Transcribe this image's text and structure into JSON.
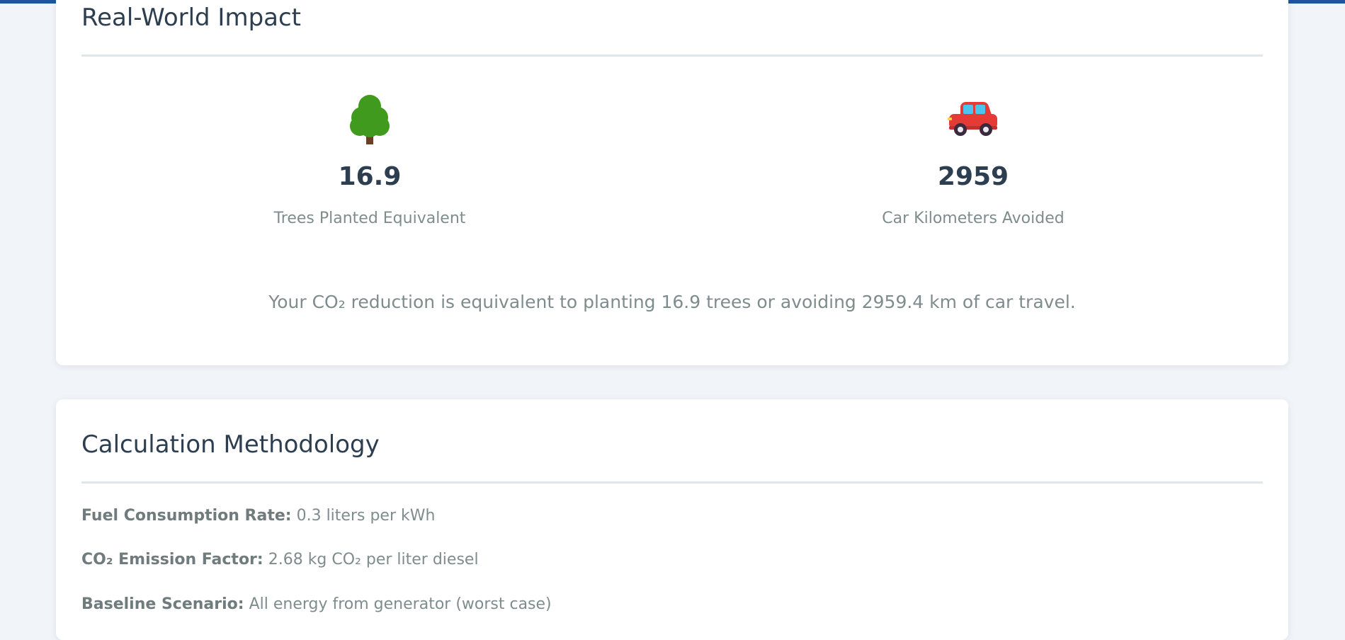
{
  "colors": {
    "accent_bar": "#1f55a0",
    "heading": "#2c3e50",
    "muted_text": "#7f8c8d",
    "background": "#f1f4f8",
    "tree_green": "#3f9a1d",
    "car_red": "#e63a36",
    "car_window": "#4cc4ee"
  },
  "impact": {
    "title": "Real-World Impact",
    "stats": [
      {
        "icon": "tree-icon",
        "value": "16.9",
        "label": "Trees Planted Equivalent"
      },
      {
        "icon": "car-icon",
        "value": "2959",
        "label": "Car Kilometers Avoided"
      }
    ],
    "summary": "Your CO₂ reduction is equivalent to planting 16.9 trees or avoiding 2959.4 km of car travel."
  },
  "methodology": {
    "title": "Calculation Methodology",
    "items": [
      {
        "label": "Fuel Consumption Rate:",
        "value": "0.3 liters per kWh"
      },
      {
        "label": "CO₂ Emission Factor:",
        "value": "2.68 kg CO₂ per liter diesel"
      },
      {
        "label": "Baseline Scenario:",
        "value": "All energy from generator (worst case)"
      }
    ]
  }
}
